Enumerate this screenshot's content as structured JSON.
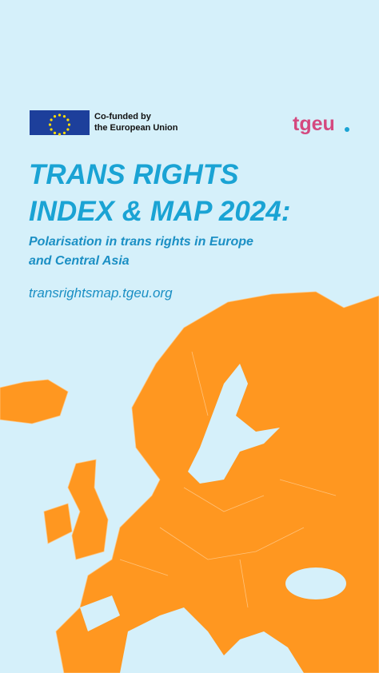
{
  "header": {
    "funding_line_1": "Co-funded by",
    "funding_line_2": "the European Union",
    "brand": "tgeu"
  },
  "title": {
    "line_1": "TRANS RIGHTS",
    "line_2": "INDEX & MAP 2024:"
  },
  "subtitle": {
    "line_1": "Polarisation in trans rights in Europe",
    "line_2": "and Central Asia"
  },
  "url": "transrightsmap.tgeu.org"
}
